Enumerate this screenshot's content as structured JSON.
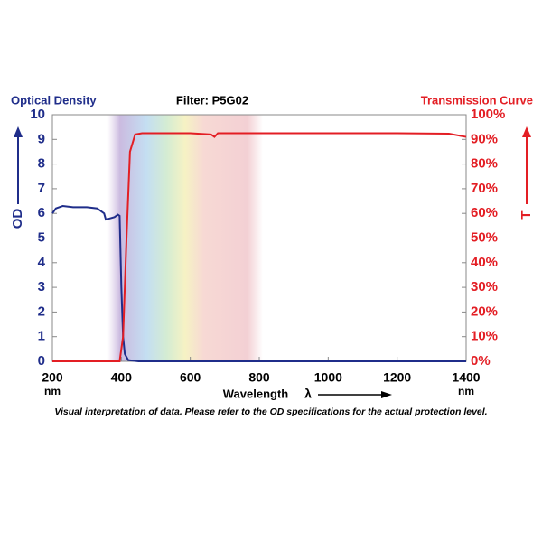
{
  "chart_data": {
    "type": "line",
    "title": "Filter: P5G02",
    "y_label": "Optical Density",
    "y2_label": "Transmission Curve",
    "x_label": "Wavelength",
    "x_symbol": "λ",
    "x_tick_units": [
      "nm",
      "nm"
    ],
    "caption": "Visual interpretation of data. Please refer to the OD specifications for the actual protection level.",
    "xlim": [
      200,
      1400
    ],
    "xticks": [
      200,
      400,
      600,
      800,
      1000,
      1200,
      1400
    ],
    "ylim": [
      0,
      10
    ],
    "yticks": [
      0,
      1,
      2,
      3,
      4,
      5,
      6,
      7,
      8,
      9,
      10
    ],
    "y2lim": [
      0,
      100
    ],
    "y2ticks": [
      {
        "value": 0,
        "label": "0%"
      },
      {
        "value": 10,
        "label": "10%"
      },
      {
        "value": 20,
        "label": "20%"
      },
      {
        "value": 30,
        "label": "30%"
      },
      {
        "value": 40,
        "label": "40%"
      },
      {
        "value": 50,
        "label": "50%"
      },
      {
        "value": 60,
        "label": "60%"
      },
      {
        "value": 70,
        "label": "70%"
      },
      {
        "value": 80,
        "label": "80%"
      },
      {
        "value": 90,
        "label": "90%"
      },
      {
        "value": 100,
        "label": "100%"
      }
    ],
    "grid": false,
    "series": [
      {
        "name": "OD",
        "color": "#1f2d8a",
        "x": [
          200,
          210,
          230,
          260,
          300,
          330,
          350,
          355,
          380,
          390,
          395,
          400,
          405,
          410,
          420,
          450,
          1400
        ],
        "values": [
          6.0,
          6.2,
          6.3,
          6.25,
          6.25,
          6.2,
          6.0,
          5.75,
          5.85,
          5.95,
          5.9,
          3.0,
          1.0,
          0.3,
          0.05,
          0,
          0
        ]
      },
      {
        "name": "T",
        "color": "#e31e24",
        "axis": "y2",
        "x": [
          200,
          395,
          405,
          415,
          425,
          440,
          460,
          600,
          660,
          670,
          680,
          1000,
          1200,
          1350,
          1400
        ],
        "values": [
          0,
          0,
          10,
          50,
          85,
          92,
          92.5,
          92.5,
          92,
          91,
          92.5,
          92.5,
          92.5,
          92.3,
          91
        ]
      }
    ]
  }
}
